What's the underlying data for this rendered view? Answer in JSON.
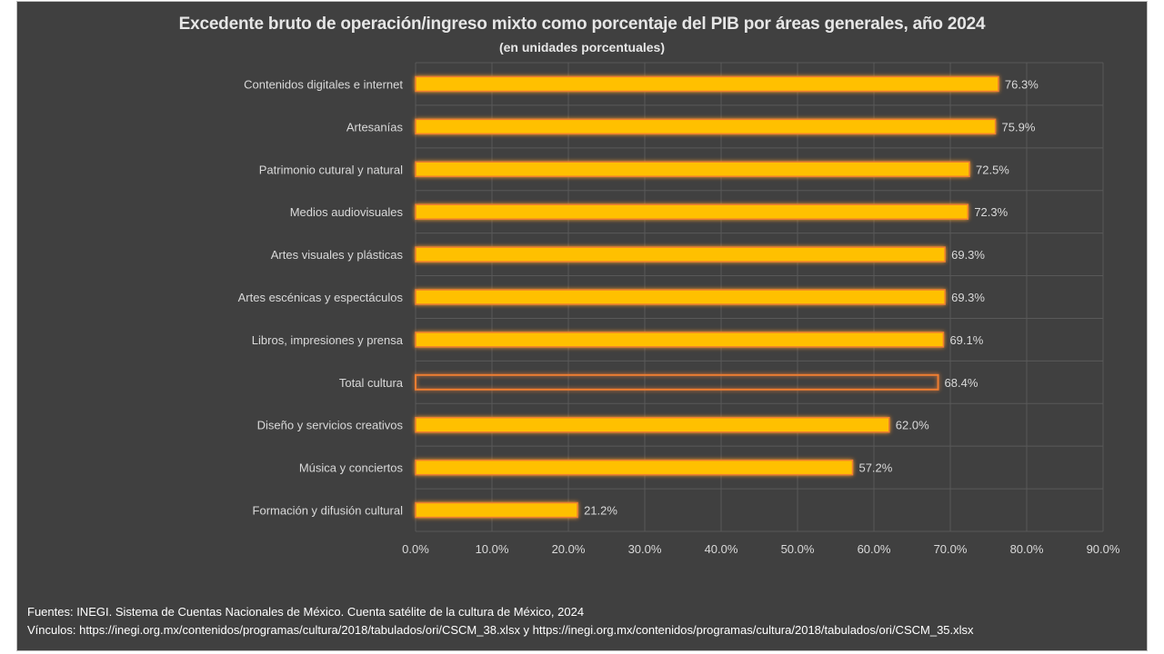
{
  "chart_data": {
    "type": "bar",
    "orientation": "horizontal",
    "title": "Excedente bruto de operación/ingreso mixto como porcentaje del PIB por áreas generales, año 2024",
    "subtitle": "(en unidades porcentuales)",
    "xlabel": "",
    "ylabel": "",
    "xlim": [
      0,
      90
    ],
    "x_ticks": [
      0,
      10,
      20,
      30,
      40,
      50,
      60,
      70,
      80,
      90
    ],
    "x_tick_labels": [
      "0.0%",
      "10.0%",
      "20.0%",
      "30.0%",
      "40.0%",
      "50.0%",
      "60.0%",
      "70.0%",
      "80.0%",
      "90.0%"
    ],
    "grid": true,
    "legend": "none",
    "categories": [
      "Contenidos digitales e internet",
      "Artesanías",
      "Patrimonio cutural y natural",
      "Medios audiovisuales",
      "Artes visuales y plásticas",
      "Artes escénicas y espectáculos",
      "Libros, impresiones y prensa",
      "Total cultura",
      "Diseño y servicios creativos",
      "Música y conciertos",
      "Formación y difusión cultural"
    ],
    "values": [
      76.3,
      75.9,
      72.5,
      72.3,
      69.3,
      69.3,
      69.1,
      68.4,
      62.0,
      57.2,
      21.2
    ],
    "value_labels": [
      "76.3%",
      "75.9%",
      "72.5%",
      "72.3%",
      "69.3%",
      "69.3%",
      "69.1%",
      "68.4%",
      "62.0%",
      "57.2%",
      "21.2%"
    ],
    "highlight_outline_only": [
      "Total cultura"
    ],
    "colors": {
      "bar_fill": "#ffc000",
      "bar_border": "#ed7d31",
      "glow": "#c55a11",
      "background": "#404040",
      "grid": "#595959",
      "text": "#d9d9d9"
    }
  },
  "footer": {
    "sources": "Fuentes: INEGI. Sistema de Cuentas Nacionales de México. Cuenta satélite de la cultura de México, 2024",
    "links": "Vínculos: https://inegi.org.mx/contenidos/programas/cultura/2018/tabulados/ori/CSCM_38.xlsx y https://inegi.org.mx/contenidos/programas/cultura/2018/tabulados/ori/CSCM_35.xlsx"
  }
}
